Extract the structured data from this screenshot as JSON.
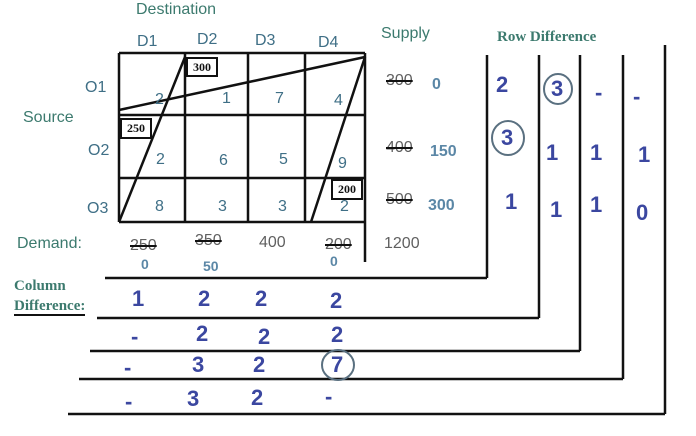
{
  "labels": {
    "destination": "Destination",
    "source": "Source",
    "supply": "Supply",
    "demand": "Demand:",
    "row_difference": "Row Difference",
    "column_difference_1": "Column",
    "column_difference_2": "Difference:"
  },
  "destinations": [
    "D1",
    "D2",
    "D3",
    "D4"
  ],
  "origins": [
    "O1",
    "O2",
    "O3"
  ],
  "costs": [
    [
      "2",
      "1",
      "7",
      "4"
    ],
    [
      "2",
      "6",
      "5",
      "9"
    ],
    [
      "8",
      "3",
      "3",
      "2"
    ]
  ],
  "allocations": {
    "o1_d2": "300",
    "o2_d1": "250",
    "o3_d4": "200"
  },
  "supply": {
    "original": [
      "300",
      "400",
      "500"
    ],
    "remaining": [
      "0",
      "150",
      "300"
    ],
    "total": "1200"
  },
  "demand": {
    "original": [
      "250",
      "350",
      "400",
      "200"
    ],
    "remaining": [
      "0",
      "50",
      "0"
    ]
  },
  "row_difference": [
    [
      "2",
      "3",
      "-",
      "-"
    ],
    [
      "3",
      "1",
      "1",
      "1"
    ],
    [
      "1",
      "1",
      "1",
      "0"
    ]
  ],
  "column_difference": [
    [
      "1",
      "2",
      "2",
      "2"
    ],
    [
      "-",
      "2",
      "2",
      "2"
    ],
    [
      "-",
      "3",
      "2",
      "7"
    ],
    [
      "-",
      "3",
      "2",
      "-"
    ]
  ],
  "colors": {
    "heading": "#3c7a6e",
    "cost": "#3f6f86",
    "difference": "#3b47a0",
    "circle": "#5a7080"
  }
}
